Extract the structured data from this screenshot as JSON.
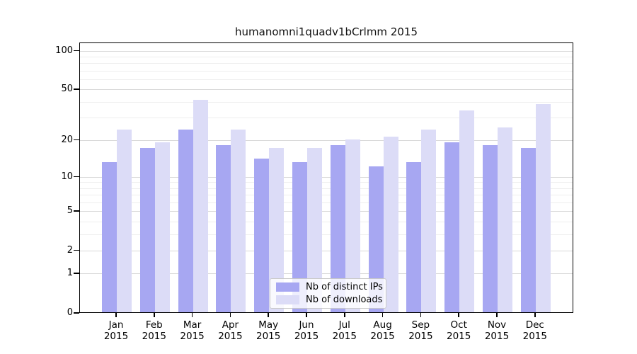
{
  "chart_data": {
    "type": "bar",
    "title": "humanomni1quadv1bCrlmm 2015",
    "categories": [
      "Jan 2015",
      "Feb 2015",
      "Mar 2015",
      "Apr 2015",
      "May 2015",
      "Jun 2015",
      "Jul 2015",
      "Aug 2015",
      "Sep 2015",
      "Oct 2015",
      "Nov 2015",
      "Dec 2015"
    ],
    "series": [
      {
        "name": "Nb of distinct IPs",
        "color": "#a7a7f2",
        "values": [
          13,
          17,
          24,
          18,
          14,
          13,
          18,
          12,
          13,
          19,
          18,
          17
        ]
      },
      {
        "name": "Nb of downloads",
        "color": "#dcdcf7",
        "values": [
          24,
          19,
          41,
          24,
          17,
          17,
          20,
          21,
          24,
          34,
          25,
          38
        ]
      }
    ],
    "y_axis": {
      "scale": "log10(1+value)",
      "tick_values": [
        0,
        1,
        2,
        5,
        10,
        20,
        50,
        100
      ],
      "tick_labels": [
        "0",
        "1",
        "2",
        "5",
        "10",
        "20",
        "50",
        "100"
      ],
      "minor_gridline_values": [
        3,
        4,
        6,
        7,
        8,
        9,
        30,
        40,
        60,
        70,
        80,
        90
      ],
      "grid": true
    },
    "x_axis": {
      "label_lines": 2
    },
    "legend": {
      "position": "lower center",
      "entries": [
        "Nb of distinct IPs",
        "Nb of downloads"
      ]
    },
    "colors": {
      "major_grid": "#d8d8d8",
      "minor_grid": "#eeeeee",
      "axis": "#000000",
      "background": "#ffffff"
    }
  }
}
